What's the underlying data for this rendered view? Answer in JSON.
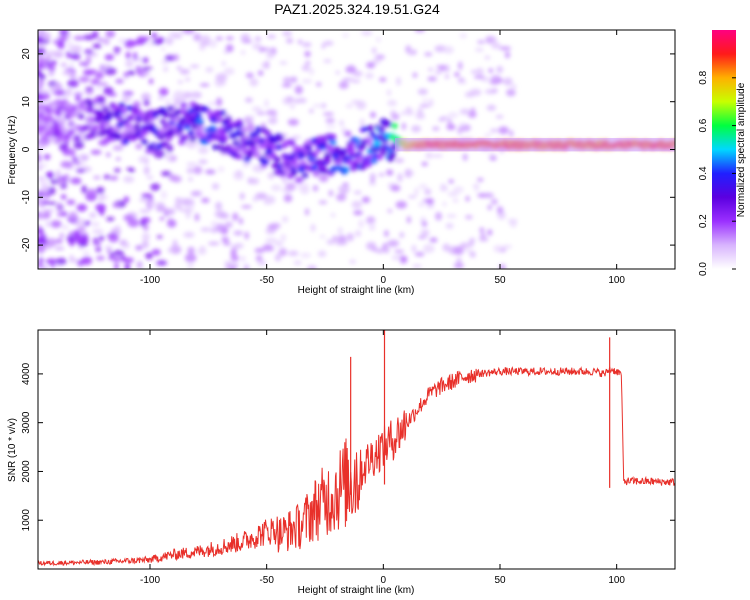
{
  "title": "PAZ1.2025.324.19.51.G24",
  "colors": {
    "snr_line": "#e8302a",
    "axis": "#000000",
    "colorbar": [
      "#ffffff",
      "#d8b4fe",
      "#9b30ff",
      "#5b00e0",
      "#2020ff",
      "#00d8ff",
      "#00ff40",
      "#c8ff00",
      "#ffb000",
      "#ff1a1a",
      "#ff0080"
    ]
  },
  "chart_data": [
    {
      "type": "heatmap",
      "name": "spectrogram",
      "xlabel": "Height of straight line (km)",
      "ylabel": "Frequency (Hz)",
      "xlim": [
        -148,
        125
      ],
      "ylim": [
        -25,
        25
      ],
      "xticks": [
        -100,
        -50,
        0,
        50,
        100
      ],
      "yticks": [
        -20,
        -10,
        0,
        10,
        20
      ],
      "xtick_labels": [
        "-100",
        "-50",
        "0",
        "50",
        "100"
      ],
      "ytick_labels": [
        "-20",
        "-10",
        "0",
        "10",
        "20"
      ],
      "ridge": {
        "x": [
          -148,
          -130,
          -120,
          -110,
          -100,
          -90,
          -80,
          -75,
          -70,
          -65,
          -60,
          -55,
          -50,
          -45,
          -40,
          -35,
          -30,
          -25,
          -20,
          -15,
          -10,
          -5,
          0,
          5,
          10,
          20,
          40,
          60,
          80,
          100,
          125
        ],
        "y": [
          5,
          6,
          7,
          5,
          4,
          5,
          6,
          5,
          4,
          3,
          2,
          1.5,
          0,
          -1,
          -2,
          -3,
          -2,
          -1,
          -1,
          -0.5,
          0,
          1,
          2,
          2,
          1,
          1,
          1,
          1,
          1,
          1,
          1
        ],
        "amplitude": [
          0.15,
          0.2,
          0.25,
          0.3,
          0.3,
          0.3,
          0.35,
          0.35,
          0.35,
          0.3,
          0.3,
          0.3,
          0.3,
          0.3,
          0.3,
          0.3,
          0.35,
          0.35,
          0.35,
          0.35,
          0.35,
          0.4,
          0.4,
          0.5,
          0.8,
          0.9,
          0.9,
          0.9,
          0.9,
          0.9,
          0.9
        ]
      }
    },
    {
      "type": "colorbar",
      "name": "amplitude-scale",
      "label": "Normalized spectral amplitude",
      "range": [
        0,
        1
      ],
      "ticks": [
        0.0,
        0.2,
        0.4,
        0.6,
        0.8
      ],
      "tick_labels": [
        "0.0",
        "0.2",
        "0.4",
        "0.6",
        "0.8"
      ]
    },
    {
      "type": "line",
      "name": "snr",
      "xlabel": "Height of straight line (km)",
      "ylabel": "SNR (10 * v/v)",
      "xlim": [
        -148,
        125
      ],
      "ylim": [
        0,
        4900
      ],
      "xticks": [
        -100,
        -50,
        0,
        50,
        100
      ],
      "yticks": [
        1000,
        2000,
        3000,
        4000
      ],
      "xtick_labels": [
        "-100",
        "-50",
        "0",
        "50",
        "100"
      ],
      "ytick_labels": [
        "1000",
        "2000",
        "3000",
        "4000"
      ],
      "series": [
        {
          "name": "SNR",
          "x": [
            -148,
            -120,
            -100,
            -90,
            -80,
            -70,
            -60,
            -50,
            -45,
            -40,
            -35,
            -30,
            -25,
            -20,
            -15,
            -10,
            -5,
            0,
            5,
            10,
            15,
            20,
            25,
            30,
            35,
            40,
            50,
            60,
            70,
            80,
            90,
            95,
            97,
            100,
            102,
            103,
            110,
            125
          ],
          "y": [
            100,
            120,
            160,
            250,
            300,
            380,
            480,
            650,
            700,
            800,
            900,
            1200,
            1400,
            1600,
            1800,
            2000,
            2300,
            2500,
            2700,
            3000,
            3300,
            3600,
            3750,
            3850,
            3950,
            4000,
            4050,
            4050,
            4050,
            4050,
            4050,
            4000,
            4100,
            4050,
            4000,
            1800,
            1800,
            1780
          ]
        }
      ],
      "spikes": [
        {
          "x": -14,
          "y": 4350
        },
        {
          "x": 0.5,
          "y": 4950
        },
        {
          "x": 97,
          "y": 4750
        }
      ]
    }
  ]
}
